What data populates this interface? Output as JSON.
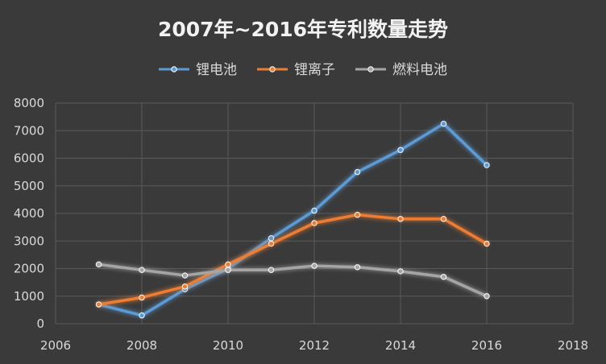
{
  "chart_data": {
    "type": "line",
    "title": "2007年~2016年专利数量走势",
    "xlabel": "",
    "ylabel": "",
    "xlim": [
      2006,
      2018
    ],
    "ylim": [
      0,
      8000
    ],
    "x_ticks": [
      "2006",
      "2008",
      "2010",
      "2012",
      "2014",
      "2016",
      "2018"
    ],
    "y_ticks": [
      "0",
      "1000",
      "2000",
      "3000",
      "4000",
      "5000",
      "6000",
      "7000",
      "8000"
    ],
    "grid": true,
    "legend_position": "top",
    "x": [
      2007,
      2008,
      2009,
      2010,
      2011,
      2012,
      2013,
      2014,
      2015,
      2016
    ],
    "series": [
      {
        "name": "锂电池",
        "color": "#5b9bd5",
        "values": [
          700,
          300,
          1250,
          2000,
          3100,
          4100,
          5500,
          6300,
          7250,
          5750
        ]
      },
      {
        "name": "锂离子",
        "color": "#ed7d31",
        "values": [
          700,
          950,
          1350,
          2150,
          2900,
          3650,
          3950,
          3800,
          3800,
          2900
        ]
      },
      {
        "name": "燃料电池",
        "color": "#a5a5a5",
        "values": [
          2150,
          1950,
          1750,
          1950,
          1950,
          2100,
          2050,
          1900,
          1700,
          1000
        ]
      }
    ]
  }
}
